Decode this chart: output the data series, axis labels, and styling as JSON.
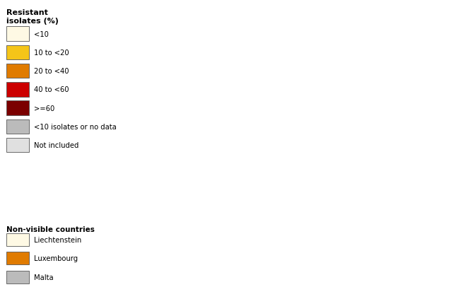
{
  "legend_title": "Resistant\nisolates (%)",
  "categories": [
    {
      "label": "<10",
      "color": "#FEF9E4"
    },
    {
      "label": "10 to <20",
      "color": "#F5C518"
    },
    {
      "label": "20 to <40",
      "color": "#E07B00"
    },
    {
      "label": "40 to <60",
      "color": "#CC0000"
    },
    {
      "label": ">=60",
      "color": "#7B0000"
    },
    {
      "label": "<10 isolates or no data",
      "color": "#BBBBBB"
    },
    {
      "label": "Not included",
      "color": "#E0E0E0"
    }
  ],
  "non_visible": [
    {
      "label": "Liechtenstein",
      "color": "#FEF9E4"
    },
    {
      "label": "Luxembourg",
      "color": "#E07B00"
    },
    {
      "label": "Malta",
      "color": "#BBBBBB"
    }
  ],
  "country_data": {
    "Norway": "#FEF9E4",
    "Sweden": "#FEF9E4",
    "Finland": "#BBBBBB",
    "Denmark": "#BBBBBB",
    "Iceland": "#E0E0E0",
    "Estonia": "#F5C518",
    "Latvia": "#BBBBBB",
    "Lithuania": "#E07B00",
    "Ireland": "#E07B00",
    "United Kingdom": "#CC0000",
    "Netherlands": "#BBBBBB",
    "Belgium": "#E07B00",
    "France": "#E07B00",
    "Germany": "#E07B00",
    "Luxembourg": "#E07B00",
    "Austria": "#CC0000",
    "Switzerland": "#E07B00",
    "Liechtenstein": "#FEF9E4",
    "Spain": "#CC0000",
    "Portugal": "#7B0000",
    "Italy": "#CC0000",
    "Malta": "#BBBBBB",
    "Czech Republic": "#E07B00",
    "Slovakia": "#E07B00",
    "Hungary": "#E07B00",
    "Poland": "#FEF9E4",
    "Slovenia": "#CC0000",
    "Croatia": "#CC0000",
    "Bosnia and Herzegovina": "#CC0000",
    "Serbia": "#CC0000",
    "Montenegro": "#BBBBBB",
    "Albania": "#CC0000",
    "Macedonia": "#CC0000",
    "Romania": "#7B0000",
    "Bulgaria": "#CC0000",
    "Greece": "#CC0000",
    "Cyprus": "#CC0000",
    "Turkey": "#E0E0E0",
    "Belarus": "#E0E0E0",
    "Ukraine": "#E0E0E0",
    "Moldova": "#E0E0E0",
    "Russia": "#E0E0E0",
    "Kazakhstan": "#E0E0E0",
    "Armenia": "#E0E0E0",
    "Azerbaijan": "#E0E0E0",
    "Georgia": "#E0E0E0",
    "Faroe Islands": "#E0E0E0",
    "Kosovo": "#CC0000"
  },
  "background_color": "#FFFFFF",
  "sea_color": "#FFFFFF",
  "non_europe_color": "#D8D8D8",
  "border_color": "#444444",
  "border_width": 0.4,
  "xlim": [
    -25,
    45
  ],
  "ylim": [
    34,
    72
  ],
  "asterisk_positions": [
    [
      10.5,
      59.2
    ],
    [
      13.5,
      57.5
    ],
    [
      15.5,
      49.9
    ],
    [
      14.7,
      47.6
    ]
  ],
  "figsize": [
    6.59,
    4.31
  ],
  "dpi": 100
}
